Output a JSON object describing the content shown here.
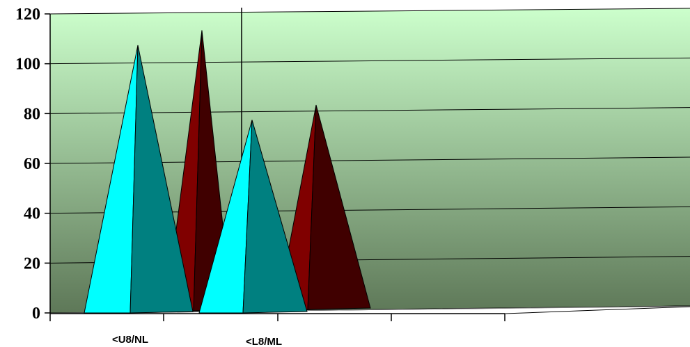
{
  "chart_data": {
    "type": "bar",
    "style": "3d-pyramid",
    "categories": [
      "<U8/NL",
      "<L8/ML"
    ],
    "series": [
      {
        "values": [
          108,
          78
        ],
        "color": "#00FFFF",
        "shade": "#008080"
      },
      {
        "values": [
          114,
          84
        ],
        "color": "#800000",
        "shade": "#400000"
      }
    ],
    "ylim": [
      0,
      120
    ],
    "yticks": [
      "0",
      "20",
      "40",
      "60",
      "80",
      "100",
      "120"
    ],
    "grid": true,
    "background": {
      "top": "#CCFFCC",
      "bottom": "#5E7858"
    },
    "floor_color": "#8C8C8C"
  }
}
